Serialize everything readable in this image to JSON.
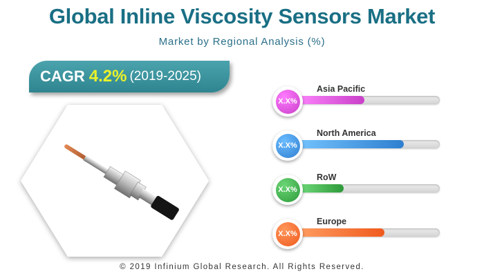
{
  "header": {
    "title": "Global Inline Viscosity Sensors Market",
    "subtitle": "Market by Regional Analysis (%)"
  },
  "cagr": {
    "label": "CAGR",
    "value": "4.2%",
    "period": "(2019-2025)"
  },
  "chart_data": {
    "type": "bar",
    "categories": [
      "Asia Pacific",
      "North America",
      "RoW",
      "Europe"
    ],
    "value_labels": [
      "X.X%",
      "X.X%",
      "X.X%",
      "X.X%"
    ],
    "values": [
      0.48,
      0.75,
      0.34,
      0.62
    ],
    "colors": [
      "#c83fc8",
      "#2f7fd0",
      "#2e9a3a",
      "#f05a1e"
    ]
  },
  "footer": {
    "copyright": "© 2019 Infinium Global Research. All Rights Reserved."
  }
}
